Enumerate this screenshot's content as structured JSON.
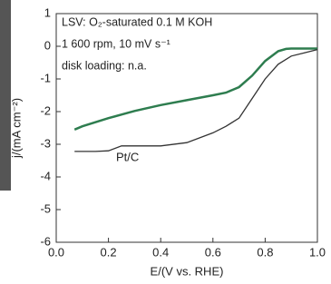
{
  "chart_data": {
    "type": "line",
    "annotations": [
      "LSV: O₂-saturated 0.1 M KOH",
      "1 600 rpm, 10 mV s⁻¹",
      "disk loading: n.a."
    ],
    "xlabel": "E/(V vs. RHE)",
    "ylabel": "j/(mA cm⁻²)",
    "xlim": [
      0,
      1
    ],
    "ylim": [
      -6,
      1
    ],
    "xticks": [
      {
        "value": 0,
        "label": "0.0"
      },
      {
        "value": 0.2,
        "label": "0.2"
      },
      {
        "value": 0.4,
        "label": "0.4"
      },
      {
        "value": 0.6,
        "label": "0.6"
      },
      {
        "value": 0.8,
        "label": "0.8"
      },
      {
        "value": 1,
        "label": "1.0"
      }
    ],
    "yticks": [
      -6,
      -5,
      -4,
      -3,
      -2,
      -1,
      0,
      1
    ],
    "series": [
      {
        "color": "#2e7d4f",
        "x": [
          0.07,
          0.1,
          0.2,
          0.3,
          0.4,
          0.5,
          0.6,
          0.65,
          0.7,
          0.75,
          0.8,
          0.85,
          0.88,
          0.9,
          1.0
        ],
        "values": [
          -2.55,
          -2.45,
          -2.2,
          -1.98,
          -1.8,
          -1.65,
          -1.5,
          -1.42,
          -1.25,
          -0.9,
          -0.45,
          -0.15,
          -0.08,
          -0.07,
          -0.07
        ]
      },
      {
        "name": "Pt/C",
        "color": "#333333",
        "x": [
          0.07,
          0.15,
          0.2,
          0.25,
          0.3,
          0.4,
          0.5,
          0.6,
          0.65,
          0.7,
          0.75,
          0.8,
          0.85,
          0.9,
          0.95,
          1.0
        ],
        "values": [
          -3.22,
          -3.22,
          -3.2,
          -3.05,
          -3.05,
          -3.05,
          -2.95,
          -2.65,
          -2.45,
          -2.2,
          -1.6,
          -1.0,
          -0.55,
          -0.3,
          -0.2,
          -0.1
        ]
      }
    ]
  }
}
